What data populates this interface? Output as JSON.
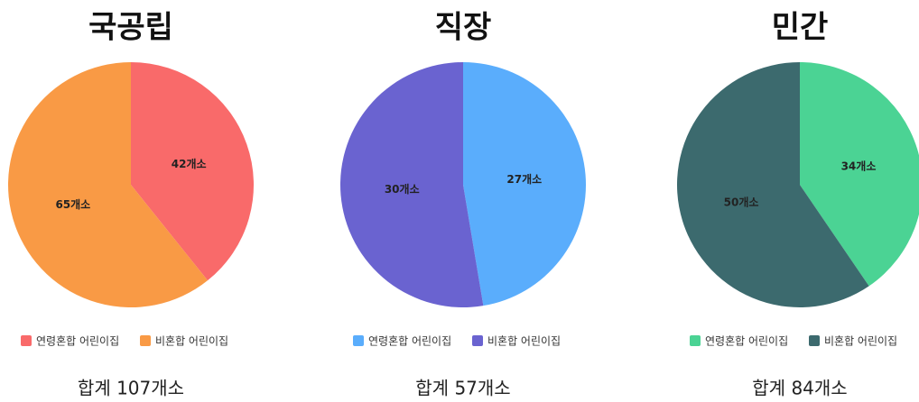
{
  "chart_data": [
    {
      "type": "pie",
      "title": "국공립",
      "categories": [
        "연령혼합 어린이집",
        "비혼합 어린이집"
      ],
      "values": [
        42,
        65
      ],
      "value_labels": [
        "42개소",
        "65개소"
      ],
      "colors": [
        "#f96a6a",
        "#f99a45"
      ],
      "note": "합계 107개소"
    },
    {
      "type": "pie",
      "title": "직장",
      "categories": [
        "연령혼합 어린이집",
        "비혼합 어린이집"
      ],
      "values": [
        27,
        30
      ],
      "value_labels": [
        "27개소",
        "30개소"
      ],
      "colors": [
        "#5aadfc",
        "#6a63d0"
      ],
      "note": "합계 57개소"
    },
    {
      "type": "pie",
      "title": "민간",
      "categories": [
        "연령혼합 어린이집",
        "비혼합 어린이집"
      ],
      "values": [
        34,
        50
      ],
      "value_labels": [
        "34개소",
        "50개소"
      ],
      "colors": [
        "#4bd394",
        "#3c6a6e"
      ],
      "note": "합계 84개소"
    }
  ]
}
